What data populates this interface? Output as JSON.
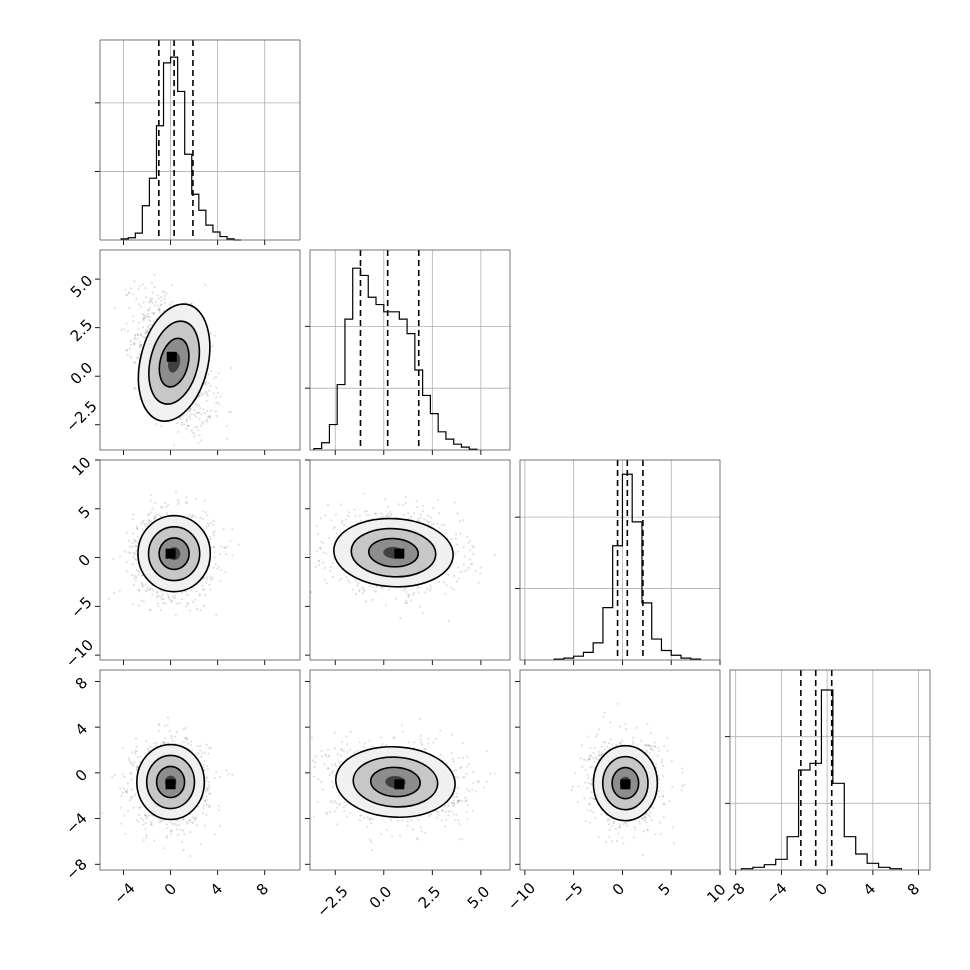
{
  "chart_data": {
    "type": "corner",
    "title": "",
    "grid": true,
    "dims": [
      {
        "range": [
          -6,
          11
        ],
        "ticks": [
          -4,
          0,
          4,
          8
        ],
        "tick_labels": [
          "−4",
          "0",
          "4",
          "8"
        ],
        "quantiles": [
          -1.0,
          0.3,
          1.9
        ]
      },
      {
        "range": [
          -3.8,
          6.5
        ],
        "ticks": [
          -2.5,
          0.0,
          2.5,
          5.0
        ],
        "tick_labels": [
          "−2.5",
          "0.0",
          "2.5",
          "5.0"
        ],
        "quantiles": [
          -1.2,
          0.2,
          1.8
        ]
      },
      {
        "range": [
          -10.5,
          10
        ],
        "ticks": [
          -10,
          -5,
          0,
          5,
          10
        ],
        "tick_labels": [
          "−10",
          "−5",
          "0",
          "5",
          "10"
        ],
        "quantiles": [
          -0.5,
          0.5,
          2.1
        ]
      },
      {
        "range": [
          -8.5,
          9
        ],
        "ticks": [
          -8,
          -4,
          0,
          4,
          8
        ],
        "tick_labels": [
          "−8",
          "−4",
          "0",
          "4",
          "8"
        ],
        "quantiles": [
          -2.3,
          -1.0,
          0.4
        ]
      }
    ],
    "histograms": [
      {
        "dim": 0,
        "bin_edges": [
          -4.2,
          -3.6,
          -3.0,
          -2.4,
          -1.8,
          -1.2,
          -0.6,
          0.0,
          0.6,
          1.2,
          1.8,
          2.4,
          3.0,
          3.6,
          4.2,
          4.8,
          5.4,
          6.0
        ],
        "counts": [
          1,
          2,
          6,
          30,
          54,
          100,
          155,
          160,
          130,
          75,
          40,
          26,
          13,
          7,
          3,
          1,
          0
        ],
        "ymax": 175,
        "yticks": [
          60,
          120
        ]
      },
      {
        "dim": 1,
        "bin_edges": [
          -3.6,
          -3.2,
          -2.8,
          -2.4,
          -2.0,
          -1.6,
          -1.2,
          -0.8,
          -0.4,
          0.0,
          0.4,
          0.8,
          1.2,
          1.6,
          2.0,
          2.4,
          2.8,
          3.2,
          3.6,
          4.0,
          4.4,
          4.8
        ],
        "counts": [
          2,
          10,
          35,
          90,
          180,
          250,
          240,
          210,
          200,
          190,
          190,
          180,
          160,
          110,
          75,
          50,
          25,
          15,
          8,
          4,
          1
        ],
        "ymax": 275,
        "yticks": [
          85,
          170
        ]
      },
      {
        "dim": 2,
        "bin_edges": [
          -7.0,
          -6.0,
          -5.0,
          -4.0,
          -3.0,
          -2.0,
          -1.0,
          0.0,
          1.0,
          2.0,
          3.0,
          4.0,
          5.0,
          6.0,
          7.0,
          8.0
        ],
        "counts": [
          1,
          2,
          4,
          8,
          18,
          55,
          120,
          195,
          145,
          60,
          22,
          10,
          5,
          2,
          1
        ],
        "ymax": 210,
        "yticks": [
          75,
          150
        ]
      },
      {
        "dim": 3,
        "bin_edges": [
          -7.5,
          -6.5,
          -5.5,
          -4.5,
          -3.5,
          -2.5,
          -1.5,
          -0.5,
          0.5,
          1.5,
          2.5,
          3.5,
          4.5,
          5.5,
          6.5
        ],
        "counts": [
          1,
          2,
          4,
          8,
          25,
          75,
          80,
          135,
          65,
          25,
          12,
          5,
          2,
          1
        ],
        "ymax": 150,
        "yticks": [
          50,
          100
        ]
      }
    ],
    "pairs": [
      {
        "x": 0,
        "y": 1,
        "cx": 0.3,
        "cy": 0.7,
        "sx": 1.4,
        "sy": 1.5,
        "rho": -0.45,
        "peak": [
          0.1,
          1.0
        ]
      },
      {
        "x": 0,
        "y": 2,
        "cx": 0.3,
        "cy": 0.4,
        "sx": 1.5,
        "sy": 1.9,
        "rho": 0.0,
        "peak": [
          0.0,
          0.4
        ]
      },
      {
        "x": 1,
        "y": 2,
        "cx": 0.5,
        "cy": 0.5,
        "sx": 1.5,
        "sy": 1.7,
        "rho": -0.1,
        "peak": [
          0.8,
          0.4
        ]
      },
      {
        "x": 0,
        "y": 3,
        "cx": 0.0,
        "cy": -0.8,
        "sx": 1.4,
        "sy": 1.6,
        "rho": 0.0,
        "peak": [
          0.0,
          -1.0
        ]
      },
      {
        "x": 1,
        "y": 3,
        "cx": 0.6,
        "cy": -0.8,
        "sx": 1.5,
        "sy": 1.5,
        "rho": -0.1,
        "peak": [
          0.8,
          -1.0
        ]
      },
      {
        "x": 2,
        "y": 3,
        "cx": 0.3,
        "cy": -0.9,
        "sx": 1.6,
        "sy": 1.6,
        "rho": 0.0,
        "peak": [
          0.3,
          -1.0
        ]
      }
    ]
  }
}
